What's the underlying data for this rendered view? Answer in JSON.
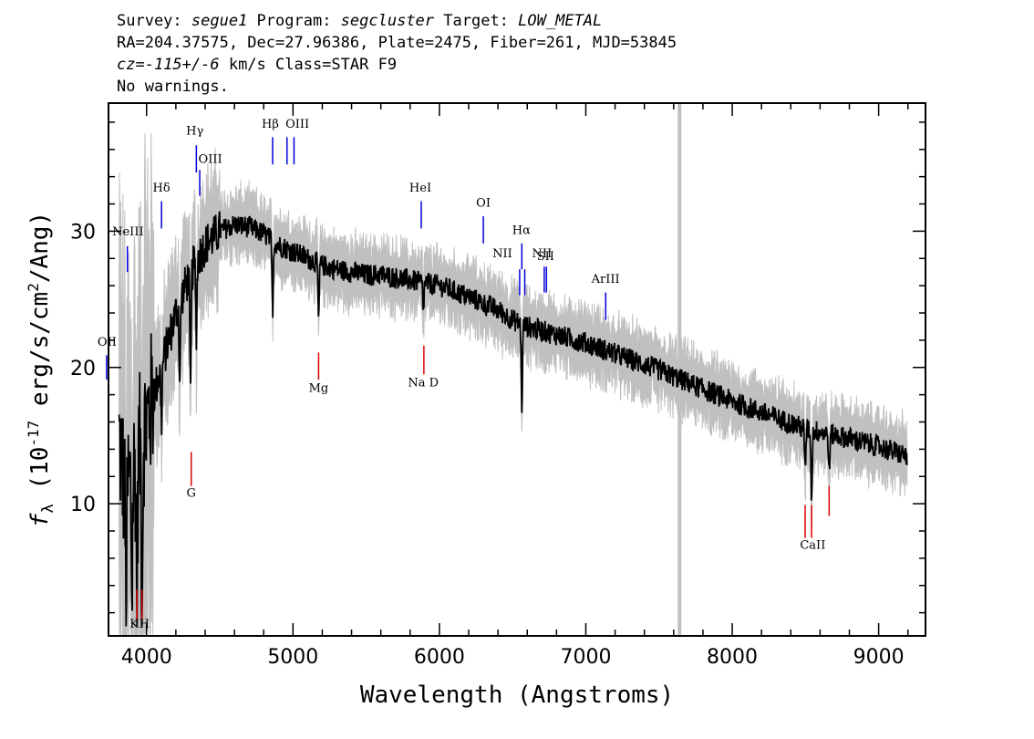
{
  "header": {
    "line1": {
      "survey_label": "Survey: ",
      "survey": "segue1",
      "program_label": " Program: ",
      "program": "segcluster",
      "target_label": " Target: ",
      "target": "LOW_METAL"
    },
    "line2": "RA=204.37575, Dec=27.96386, Plate=2475, Fiber=261, MJD=53845",
    "line3": {
      "cz": "cz=-115+/-6",
      "rest": " km/s Class=STAR F9"
    },
    "line4": "No warnings."
  },
  "chart_data": {
    "type": "line",
    "xlabel": "Wavelength (Angstroms)",
    "ylabel": "f_λ (10^-17 erg/s/cm^2/Ang)",
    "xlim": [
      3740,
      9320
    ],
    "ylim": [
      0.3,
      39.4
    ],
    "xticks": [
      4000,
      5000,
      6000,
      7000,
      8000,
      9000
    ],
    "yticks": [
      10,
      20,
      30
    ],
    "series": [
      {
        "role": "error-band",
        "color": "#c0c0c0"
      },
      {
        "role": "flux",
        "color": "#000000"
      }
    ],
    "flux_trend": {
      "x": [
        3800,
        3850,
        3900,
        3950,
        4000,
        4050,
        4100,
        4150,
        4200,
        4300,
        4400,
        4500,
        4600,
        4700,
        4800,
        4900,
        5000,
        5100,
        5200,
        5300,
        5400,
        5500,
        5600,
        5700,
        5800,
        5900,
        6000,
        6200,
        6400,
        6500,
        6600,
        6800,
        7000,
        7200,
        7500,
        8000,
        8500,
        8800,
        9000,
        9200
      ],
      "y": [
        16,
        11,
        12,
        14,
        16,
        18,
        20,
        22,
        24,
        27,
        29,
        30,
        30.5,
        30.3,
        29.8,
        29,
        28.5,
        28,
        27.5,
        27.2,
        27,
        26.8,
        26.8,
        26.6,
        26.4,
        26.2,
        26,
        25.2,
        24.2,
        23.5,
        23,
        22.4,
        21.8,
        21,
        19.8,
        17.5,
        15.5,
        14.8,
        14.2,
        13.5
      ]
    },
    "absorption_features": [
      {
        "x": 3860,
        "depth": 9
      },
      {
        "x": 3900,
        "depth": 8
      },
      {
        "x": 3934,
        "depth": 10
      },
      {
        "x": 3969,
        "depth": 12
      },
      {
        "x": 4102,
        "depth": 4
      },
      {
        "x": 4227,
        "depth": 6
      },
      {
        "x": 4300,
        "depth": 9
      },
      {
        "x": 4340,
        "depth": 5
      },
      {
        "x": 4861,
        "depth": 5
      },
      {
        "x": 5175,
        "depth": 4
      },
      {
        "x": 5890,
        "depth": 2
      },
      {
        "x": 6563,
        "depth": 6
      },
      {
        "x": 8498,
        "depth": 3
      },
      {
        "x": 8542,
        "depth": 5
      },
      {
        "x": 8662,
        "depth": 3
      }
    ],
    "gray_marker_x": 7640,
    "emission_lines": [
      {
        "label": "OII",
        "x": 3727,
        "y_top": 20.9,
        "y_bot": 19.1,
        "lx": 3730,
        "ly": 21.6,
        "anchor": "middle"
      },
      {
        "label": "NeIII",
        "x": 3869,
        "y_top": 28.9,
        "y_bot": 27.0,
        "lx": 3873,
        "ly": 29.7,
        "anchor": "middle"
      },
      {
        "label": "Hδ",
        "x": 4102,
        "y_top": 32.2,
        "y_bot": 30.2,
        "lx": 4102,
        "ly": 32.9,
        "anchor": "middle"
      },
      {
        "label": "Hγ",
        "x": 4340,
        "y_top": 36.3,
        "y_bot": 34.3,
        "lx": 4330,
        "ly": 37.1,
        "anchor": "middle"
      },
      {
        "label": "OIII",
        "x": 4363,
        "y_top": 34.5,
        "y_bot": 32.6,
        "lx": 4435,
        "ly": 35.0,
        "anchor": "middle"
      },
      {
        "label": "Hβ",
        "x": 4861,
        "y_top": 36.9,
        "y_bot": 34.9,
        "lx": 4845,
        "ly": 37.6,
        "anchor": "middle"
      },
      {
        "label": "OIII",
        "x": 4959,
        "y_top": 36.9,
        "y_bot": 34.9,
        "lx": 5030,
        "ly": 37.6,
        "anchor": "middle"
      },
      {
        "label": "OIII",
        "x": 5007,
        "y_top": 36.9,
        "y_bot": 34.9,
        "lx": null,
        "ly": null,
        "anchor": "middle"
      },
      {
        "label": "HeI",
        "x": 5876,
        "y_top": 32.2,
        "y_bot": 30.2,
        "lx": 5870,
        "ly": 32.9,
        "anchor": "middle"
      },
      {
        "label": "OI",
        "x": 6300,
        "y_top": 31.1,
        "y_bot": 29.1,
        "lx": 6300,
        "ly": 31.8,
        "anchor": "middle"
      },
      {
        "label": "Hα",
        "x": 6563,
        "y_top": 29.1,
        "y_bot": 27.2,
        "lx": 6560,
        "ly": 29.8,
        "anchor": "middle"
      },
      {
        "label": "NII",
        "x": 6548,
        "y_top": 27.2,
        "y_bot": 25.3,
        "lx": 6430,
        "ly": 28.1,
        "anchor": "middle"
      },
      {
        "label": "NII",
        "x": 6583,
        "y_top": 27.2,
        "y_bot": 25.3,
        "lx": 6700,
        "ly": 28.1,
        "anchor": "middle"
      },
      {
        "label": "SII",
        "x": 6716,
        "y_top": 27.4,
        "y_bot": 25.5,
        "lx": 6725,
        "ly": 27.9,
        "anchor": "middle"
      },
      {
        "label": "SII",
        "x": 6731,
        "y_top": 27.4,
        "y_bot": 25.5,
        "lx": null,
        "ly": null,
        "anchor": "middle"
      },
      {
        "label": "ArIII",
        "x": 7136,
        "y_top": 25.5,
        "y_bot": 23.5,
        "lx": 7135,
        "ly": 26.2,
        "anchor": "middle"
      }
    ],
    "absorption_lines": [
      {
        "label": "K",
        "x": 3934,
        "y_top": 3.7,
        "y_bot": 1.5,
        "lx": 3915,
        "ly": 0.9,
        "anchor": "middle"
      },
      {
        "label": "H",
        "x": 3969,
        "y_top": 3.7,
        "y_bot": 1.5,
        "lx": 3985,
        "ly": 0.9,
        "anchor": "middle"
      },
      {
        "label": "G",
        "x": 4305,
        "y_top": 13.8,
        "y_bot": 11.3,
        "lx": 4305,
        "ly": 10.5,
        "anchor": "middle"
      },
      {
        "label": "Mg",
        "x": 5175,
        "y_top": 21.1,
        "y_bot": 19.1,
        "lx": 5175,
        "ly": 18.2,
        "anchor": "middle"
      },
      {
        "label": "Na D",
        "x": 5894,
        "y_top": 21.6,
        "y_bot": 19.5,
        "lx": 5890,
        "ly": 18.6,
        "anchor": "middle"
      },
      {
        "label": "CaII",
        "x": 8498,
        "y_top": 9.9,
        "y_bot": 7.5,
        "lx": 8550,
        "ly": 6.7,
        "anchor": "middle"
      },
      {
        "label": "CaII",
        "x": 8542,
        "y_top": 9.9,
        "y_bot": 7.5,
        "lx": null,
        "ly": null,
        "anchor": "middle"
      },
      {
        "label": "CaII",
        "x": 8662,
        "y_top": 11.3,
        "y_bot": 9.1,
        "lx": null,
        "ly": null,
        "anchor": "middle"
      }
    ],
    "colors": {
      "emission": "#0000dd",
      "absorption": "#dd0000",
      "marker": "#c0c0c0"
    }
  }
}
